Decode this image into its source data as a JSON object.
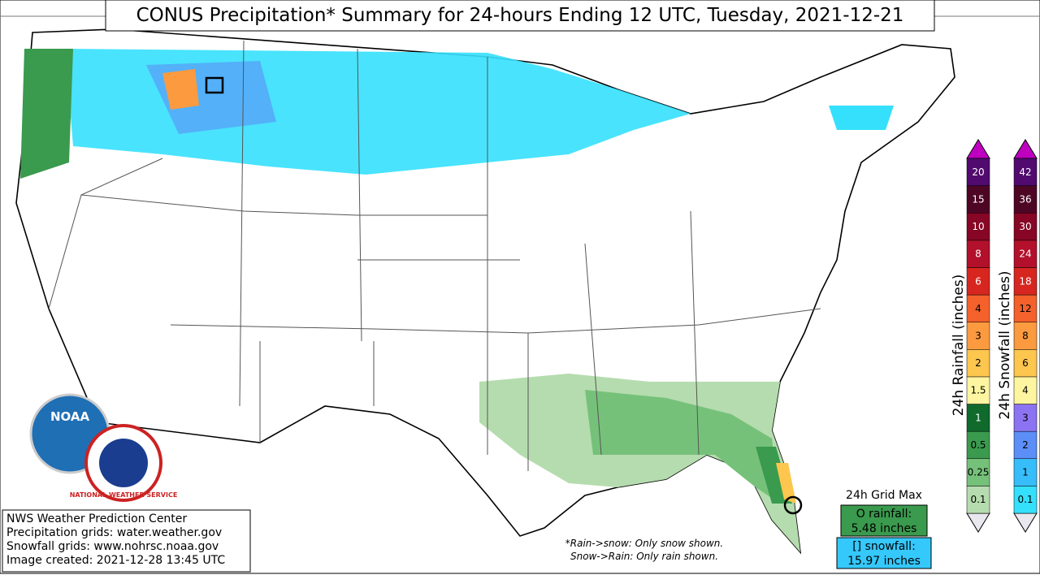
{
  "title": "CONUS Precipitation* Summary for 24-hours Ending 12 UTC, Tuesday, 2021-12-21",
  "rainfall_legend": {
    "title": "24h Rainfall (inches)",
    "levels": [
      {
        "label": "0.1",
        "color": "#b5dcae"
      },
      {
        "label": "0.25",
        "color": "#76c17a"
      },
      {
        "label": "0.5",
        "color": "#3a9a4e"
      },
      {
        "label": "1",
        "color": "#0f6a2c"
      },
      {
        "label": "1.5",
        "color": "#fdf5a0"
      },
      {
        "label": "2",
        "color": "#fcc64f"
      },
      {
        "label": "3",
        "color": "#fb9a3f"
      },
      {
        "label": "4",
        "color": "#f4612b"
      },
      {
        "label": "6",
        "color": "#d7261f"
      },
      {
        "label": "8",
        "color": "#b2102b"
      },
      {
        "label": "10",
        "color": "#870525"
      },
      {
        "label": "15",
        "color": "#4d0624"
      },
      {
        "label": "20",
        "color": "#510a6d"
      }
    ]
  },
  "snowfall_legend": {
    "title": "24h Snowfall (inches)",
    "levels": [
      {
        "label": "0.1",
        "color": "#35e0fd"
      },
      {
        "label": "1",
        "color": "#38bdfb"
      },
      {
        "label": "2",
        "color": "#5b8ef7"
      },
      {
        "label": "3",
        "color": "#8c73f2"
      },
      {
        "label": "4",
        "color": "#fdf5a0"
      },
      {
        "label": "6",
        "color": "#fcc64f"
      },
      {
        "label": "8",
        "color": "#fb9a3f"
      },
      {
        "label": "12",
        "color": "#f4612b"
      },
      {
        "label": "18",
        "color": "#d7261f"
      },
      {
        "label": "24",
        "color": "#b2102b"
      },
      {
        "label": "30",
        "color": "#870525"
      },
      {
        "label": "36",
        "color": "#4d0624"
      },
      {
        "label": "42",
        "color": "#510a6d"
      }
    ]
  },
  "grid_max": {
    "title": "24h Grid Max",
    "rainfall_label": "O rainfall:",
    "rainfall_value": "5.48 inches",
    "snowfall_label": "[] snowfall:",
    "snowfall_value": "15.97 inches"
  },
  "note": [
    "*Rain->snow: Only snow shown.",
    "Snow->Rain: Only rain shown."
  ],
  "credits": [
    "NWS Weather Prediction Center",
    "Precipitation grids: water.weather.gov",
    "Snowfall grids: www.nohrsc.noaa.gov",
    "Image created: 2021-12-28 13:45 UTC"
  ],
  "logos": {
    "noaa": "NOAA",
    "nws": "NATIONAL WEATHER SERVICE"
  }
}
